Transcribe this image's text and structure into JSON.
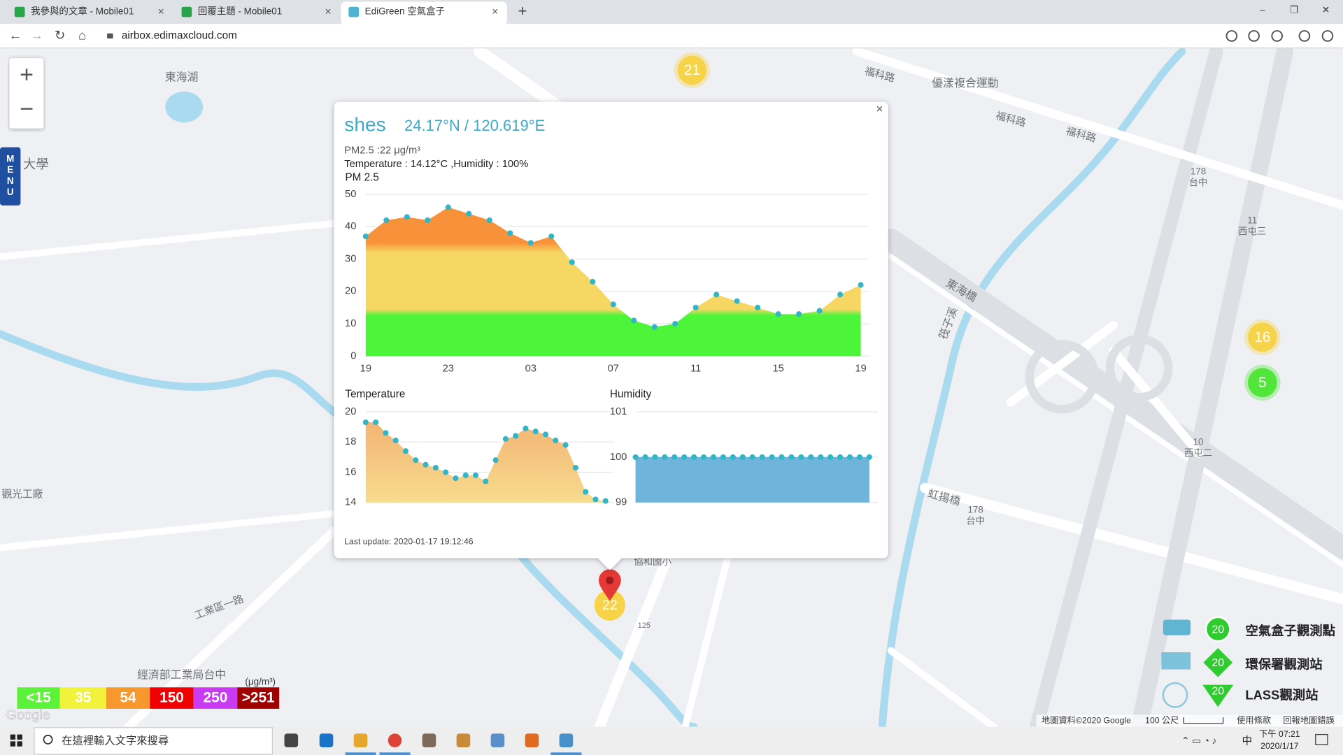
{
  "browser": {
    "tabs": [
      "我參與的文章 - Mobile01",
      "回覆主題 - Mobile01",
      "EdiGreen 空氣盒子"
    ],
    "url": "airbox.edimaxcloud.com"
  },
  "menu": [
    "M",
    "E",
    "N",
    "U"
  ],
  "map": {
    "labels": [
      "東海湖",
      "大學",
      "優漾複合運動",
      "福科路",
      "福科路",
      "福科路",
      "東海橋",
      "虹揚橋",
      "筏子溪",
      "觀光工廠",
      "工業區一路",
      "經濟部工業局台中",
      "協和國小",
      "178",
      "台中",
      "178",
      "台中",
      "11",
      "西屯三",
      "10",
      "西屯二",
      "125"
    ],
    "clusters": [
      {
        "value": 21,
        "color": "#f7d34a"
      },
      {
        "value": 16,
        "color": "#f7d34a"
      },
      {
        "value": 5,
        "color": "#52e63a"
      }
    ],
    "selected": {
      "value": 22,
      "color": "#f7d34a"
    },
    "google": "Google",
    "attribution": "地圖資料©2020 Google",
    "scale": "100 公尺",
    "terms": "使用條款",
    "report": "回報地圖錯誤"
  },
  "popup": {
    "name": "shes",
    "coords": "24.17°N / 120.619°E",
    "pm25_text": "PM2.5 :22 μg/m³",
    "temp_hum_text": "Temperature : 14.12°C ,Humidity : 100%",
    "last_update": "Last update: 2020-01-17 19:12:46"
  },
  "chart_data": [
    {
      "type": "area",
      "title": "PM 2.5",
      "color": "#33b5c8",
      "categories": [
        "19",
        null,
        null,
        null,
        "23",
        null,
        null,
        null,
        "03",
        null,
        null,
        null,
        "07",
        null,
        null,
        null,
        "11",
        null,
        null,
        null,
        "15",
        null,
        null,
        null,
        "19"
      ],
      "values": [
        37,
        42,
        43,
        42,
        46,
        44,
        42,
        38,
        35,
        37,
        29,
        23,
        16,
        11,
        9,
        10,
        15,
        19,
        17,
        15,
        13,
        13,
        14,
        19,
        22
      ],
      "ylim": [
        0,
        50
      ],
      "yticks": [
        0,
        10,
        20,
        30,
        40,
        50
      ],
      "grid": true
    },
    {
      "type": "area",
      "title": "Temperature",
      "color": "#33b5c8",
      "values": [
        19.3,
        19.3,
        18.6,
        18.1,
        17.4,
        16.8,
        16.5,
        16.3,
        16.0,
        15.6,
        15.8,
        15.8,
        15.4,
        16.8,
        18.2,
        18.4,
        18.9,
        18.7,
        18.5,
        18.1,
        17.8,
        16.3,
        14.7,
        14.2,
        14.1
      ],
      "ylim": [
        14,
        20
      ],
      "yticks": [
        14,
        16,
        18,
        20
      ],
      "grid": true
    },
    {
      "type": "area",
      "title": "Humidity",
      "color": "#33b5c8",
      "values": [
        100,
        100,
        100,
        100,
        100,
        100,
        100,
        100,
        100,
        100,
        100,
        100,
        100,
        100,
        100,
        100,
        100,
        100,
        100,
        100,
        100,
        100,
        100,
        100,
        100
      ],
      "ylim": [
        99,
        101
      ],
      "yticks": [
        99,
        100,
        101
      ],
      "grid": true
    }
  ],
  "aqi_legend": {
    "unit": "(μg/m³)",
    "levels": [
      {
        "label": "<15",
        "color": "#5cf23a"
      },
      {
        "label": "35",
        "color": "#f2f23a"
      },
      {
        "label": "54",
        "color": "#f7982f"
      },
      {
        "label": "150",
        "color": "#f00000"
      },
      {
        "label": "250",
        "color": "#c93af2"
      },
      {
        "label": ">251",
        "color": "#a10000"
      }
    ]
  },
  "station_legend": [
    {
      "value": 20,
      "label": "空氣盒子觀測點"
    },
    {
      "value": 20,
      "label": "環保署觀測站"
    },
    {
      "value": 20,
      "label": "LASS觀測站"
    }
  ],
  "taskbar": {
    "search": "在這裡輸入文字來搜尋",
    "ime": "中",
    "time": "下午 07:21",
    "date": "2020/1/17"
  }
}
